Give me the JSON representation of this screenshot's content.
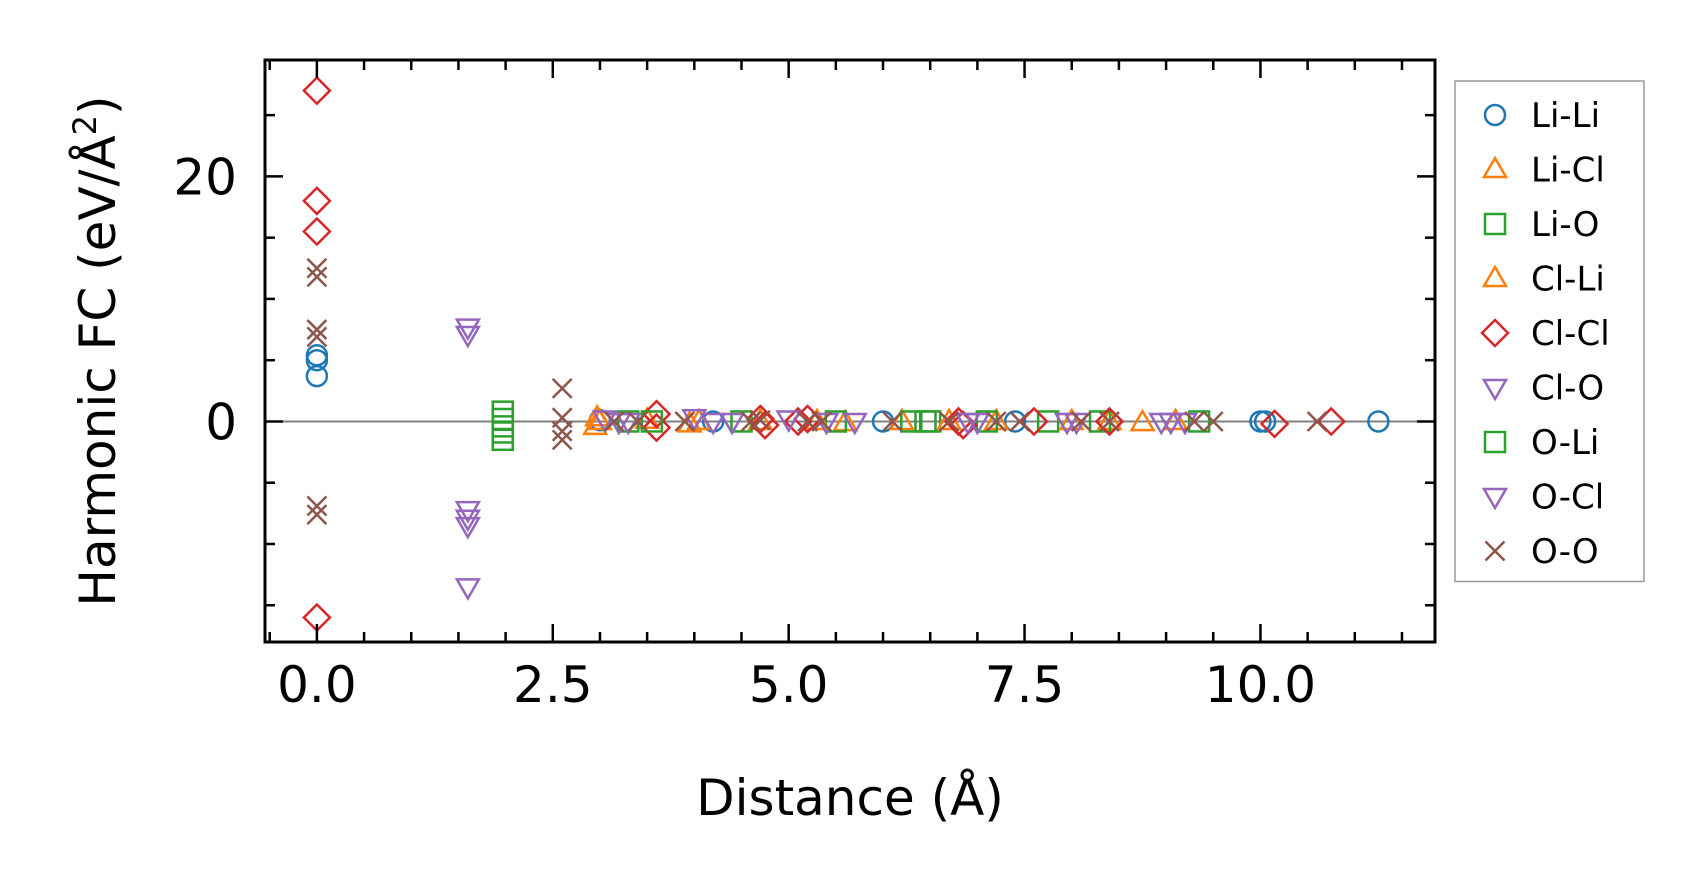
{
  "chart_data": {
    "type": "scatter",
    "title": "",
    "xlabel": "Distance (Å)",
    "ylabel_main": "Harmonic FC (eV/Å",
    "ylabel_sup": "2",
    "ylabel_close": ")",
    "xlim": [
      -0.55,
      11.85
    ],
    "ylim": [
      -18,
      29.5
    ],
    "xticks": [
      0.0,
      2.5,
      5.0,
      7.5,
      10.0
    ],
    "xtick_labels": [
      "0.0",
      "2.5",
      "5.0",
      "7.5",
      "10.0"
    ],
    "yticks": [
      0,
      20
    ],
    "ytick_labels": [
      "0",
      "20"
    ],
    "zero_line": true,
    "grid": false,
    "legend_position": "outside-right",
    "series": [
      {
        "name": "Li-Li",
        "marker": "circle",
        "color": "#1f77b4",
        "points": [
          [
            0.0,
            3.7
          ],
          [
            0.0,
            5.0
          ],
          [
            0.0,
            5.4
          ],
          [
            3.0,
            0.1
          ],
          [
            4.2,
            0.0
          ],
          [
            6.0,
            0.0
          ],
          [
            7.4,
            0.0
          ],
          [
            10.0,
            0.0
          ],
          [
            10.05,
            0.0
          ],
          [
            11.25,
            0.0
          ]
        ]
      },
      {
        "name": "Li-Cl",
        "marker": "triangle-up",
        "color": "#ff7f0e",
        "points": [
          [
            2.95,
            -0.4
          ],
          [
            2.97,
            0.3
          ],
          [
            3.5,
            0.1
          ],
          [
            3.95,
            -0.2
          ],
          [
            4.7,
            0.0
          ],
          [
            5.6,
            -0.1
          ],
          [
            6.2,
            0.0
          ],
          [
            7.2,
            0.0
          ],
          [
            8.4,
            0.0
          ],
          [
            8.75,
            -0.1
          ],
          [
            9.1,
            0.0
          ]
        ]
      },
      {
        "name": "Li-O",
        "marker": "square",
        "color": "#2ca02c",
        "points": [
          [
            1.97,
            0.8
          ],
          [
            1.97,
            0.2
          ],
          [
            1.97,
            -0.4
          ],
          [
            1.97,
            -0.9
          ],
          [
            1.97,
            -1.5
          ],
          [
            3.3,
            0.0
          ],
          [
            4.5,
            0.0
          ],
          [
            5.5,
            0.0
          ],
          [
            6.5,
            0.0
          ],
          [
            7.1,
            0.0
          ],
          [
            7.75,
            0.0
          ],
          [
            8.3,
            0.0
          ],
          [
            9.35,
            0.0
          ]
        ]
      },
      {
        "name": "Cl-Li",
        "marker": "triangle-up",
        "color": "#ff7f0e",
        "points": [
          [
            3.0,
            0.0
          ],
          [
            4.05,
            0.0
          ],
          [
            5.3,
            0.0
          ],
          [
            6.7,
            0.0
          ],
          [
            8.0,
            0.0
          ]
        ]
      },
      {
        "name": "Cl-Cl",
        "marker": "diamond",
        "color": "#d62728",
        "points": [
          [
            0.0,
            27.0
          ],
          [
            0.0,
            18.0
          ],
          [
            0.0,
            15.5
          ],
          [
            0.0,
            -16.0
          ],
          [
            3.6,
            0.6
          ],
          [
            3.6,
            -0.5
          ],
          [
            4.7,
            0.2
          ],
          [
            4.75,
            -0.3
          ],
          [
            5.1,
            0.0
          ],
          [
            5.2,
            0.2
          ],
          [
            6.8,
            0.0
          ],
          [
            6.85,
            -0.3
          ],
          [
            7.6,
            0.0
          ],
          [
            8.4,
            0.0
          ],
          [
            10.15,
            -0.2
          ],
          [
            10.75,
            0.0
          ]
        ]
      },
      {
        "name": "Cl-O",
        "marker": "triangle-down",
        "color": "#9467bd",
        "points": [
          [
            1.6,
            7.7
          ],
          [
            1.6,
            7.1
          ],
          [
            1.6,
            -7.2
          ],
          [
            1.6,
            -7.9
          ],
          [
            1.6,
            -8.5
          ],
          [
            1.6,
            -13.5
          ],
          [
            3.05,
            0.2
          ],
          [
            3.3,
            0.0
          ],
          [
            4.0,
            0.3
          ],
          [
            4.4,
            0.0
          ],
          [
            5.0,
            0.2
          ],
          [
            5.7,
            0.0
          ],
          [
            7.0,
            0.0
          ],
          [
            7.95,
            0.0
          ],
          [
            8.95,
            0.0
          ],
          [
            9.2,
            0.0
          ]
        ]
      },
      {
        "name": "O-Li",
        "marker": "square",
        "color": "#2ca02c",
        "points": [
          [
            3.55,
            0.0
          ],
          [
            6.3,
            0.0
          ],
          [
            6.45,
            0.0
          ]
        ]
      },
      {
        "name": "O-Cl",
        "marker": "triangle-down",
        "color": "#9467bd",
        "points": [
          [
            3.2,
            0.0
          ],
          [
            4.2,
            0.0
          ],
          [
            5.4,
            0.0
          ],
          [
            6.9,
            0.0
          ],
          [
            8.05,
            0.0
          ],
          [
            9.05,
            0.0
          ]
        ]
      },
      {
        "name": "O-O",
        "marker": "x",
        "color": "#8c564b",
        "points": [
          [
            0.0,
            12.5
          ],
          [
            0.0,
            11.8
          ],
          [
            0.0,
            7.5
          ],
          [
            0.0,
            6.9
          ],
          [
            0.0,
            -6.9
          ],
          [
            0.0,
            -7.6
          ],
          [
            2.6,
            2.7
          ],
          [
            2.6,
            0.3
          ],
          [
            2.6,
            -0.8
          ],
          [
            2.6,
            -1.5
          ],
          [
            3.15,
            0.0
          ],
          [
            3.4,
            0.0
          ],
          [
            3.9,
            0.0
          ],
          [
            4.6,
            0.0
          ],
          [
            4.7,
            0.1
          ],
          [
            5.2,
            0.0
          ],
          [
            5.35,
            0.0
          ],
          [
            6.1,
            0.0
          ],
          [
            6.7,
            0.0
          ],
          [
            7.2,
            0.0
          ],
          [
            7.45,
            0.0
          ],
          [
            8.1,
            0.0
          ],
          [
            8.4,
            0.0
          ],
          [
            9.3,
            0.0
          ],
          [
            9.5,
            0.0
          ],
          [
            10.6,
            0.0
          ]
        ]
      }
    ]
  }
}
